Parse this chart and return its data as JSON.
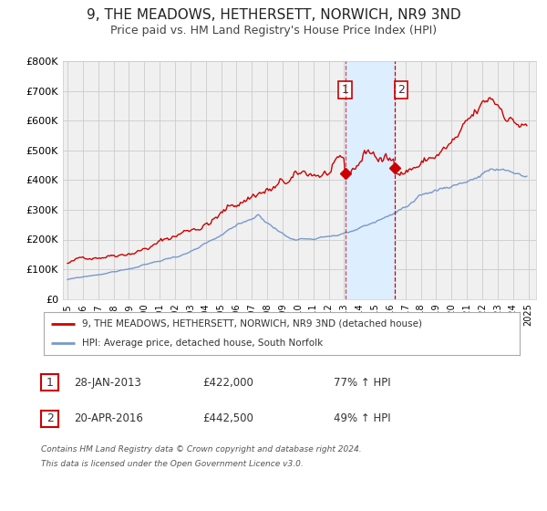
{
  "title": "9, THE MEADOWS, HETHERSETT, NORWICH, NR9 3ND",
  "subtitle": "Price paid vs. HM Land Registry's House Price Index (HPI)",
  "title_fontsize": 11,
  "subtitle_fontsize": 9,
  "background_color": "#ffffff",
  "plot_bg_color": "#f0f0f0",
  "grid_color": "#cccccc",
  "red_line_color": "#cc0000",
  "blue_line_color": "#7799cc",
  "shaded_region_color": "#ddeeff",
  "dashed_line_color": "#cc0000",
  "ylim": [
    0,
    800000
  ],
  "ytick_labels": [
    "£0",
    "£100K",
    "£200K",
    "£300K",
    "£400K",
    "£500K",
    "£600K",
    "£700K",
    "£800K"
  ],
  "ytick_values": [
    0,
    100000,
    200000,
    300000,
    400000,
    500000,
    600000,
    700000,
    800000
  ],
  "xlim_start": 1994.7,
  "xlim_end": 2025.5,
  "sale1_date": 2013.07,
  "sale1_price": 422000,
  "sale2_date": 2016.3,
  "sale2_price": 442500,
  "shade_x_start": 2013.07,
  "shade_x_end": 2016.3,
  "legend_label_red": "9, THE MEADOWS, HETHERSETT, NORWICH, NR9 3ND (detached house)",
  "legend_label_blue": "HPI: Average price, detached house, South Norfolk",
  "table_row1": [
    "1",
    "28-JAN-2013",
    "£422,000",
    "77% ↑ HPI"
  ],
  "table_row2": [
    "2",
    "20-APR-2016",
    "£442,500",
    "49% ↑ HPI"
  ],
  "footer_line1": "Contains HM Land Registry data © Crown copyright and database right 2024.",
  "footer_line2": "This data is licensed under the Open Government Licence v3.0."
}
